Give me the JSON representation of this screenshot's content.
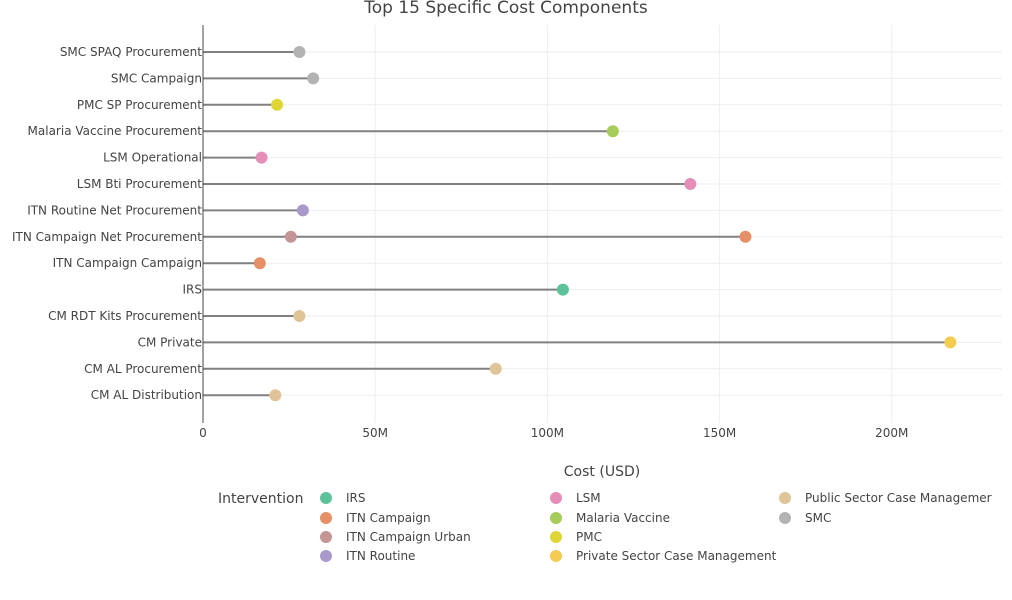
{
  "chart_data": {
    "type": "lollipop",
    "title": "Top 15 Specific Cost Components",
    "xlabel": "Cost (USD)",
    "ylabel": "",
    "xlim": [
      0,
      232000000
    ],
    "xticks": [
      {
        "value": 0,
        "label": "0"
      },
      {
        "value": 50000000,
        "label": "50M"
      },
      {
        "value": 100000000,
        "label": "100M"
      },
      {
        "value": 150000000,
        "label": "150M"
      },
      {
        "value": 200000000,
        "label": "200M"
      }
    ],
    "grid": true,
    "legend_position": "bottom",
    "legend_title": "Intervention",
    "categories": [
      "SMC SPAQ  Procurement",
      "SMC Campaign",
      "PMC SP Procurement",
      "Malaria Vaccine Procurement",
      "LSM Operational",
      "LSM Bti Procurement",
      "ITN Routine Net Procurement",
      "ITN Campaign Net Procurement",
      "ITN Campaign Campaign",
      "IRS",
      "CM RDT Kits Procurement",
      "CM Private",
      "CM AL Procurement",
      "CM AL Distribution"
    ],
    "series": [
      {
        "name": "IRS",
        "color": "#5cc29a",
        "points": [
          {
            "category": "IRS",
            "value": 104500000
          }
        ]
      },
      {
        "name": "ITN Routine",
        "color": "#a999cb",
        "points": [
          {
            "category": "ITN Routine Net Procurement",
            "value": 29000000
          }
        ]
      },
      {
        "name": "PMC",
        "color": "#e0d536",
        "points": [
          {
            "category": "PMC SP Procurement",
            "value": 21500000
          }
        ]
      },
      {
        "name": "SMC",
        "color": "#b3b3b3",
        "points": [
          {
            "category": "SMC SPAQ  Procurement",
            "value": 28000000
          },
          {
            "category": "SMC Campaign",
            "value": 32000000
          }
        ]
      },
      {
        "name": "ITN Campaign",
        "color": "#e59066",
        "points": [
          {
            "category": "ITN Campaign Net Procurement",
            "value": 157500000
          },
          {
            "category": "ITN Campaign Campaign",
            "value": 16500000
          }
        ]
      },
      {
        "name": "LSM",
        "color": "#e58fb8",
        "points": [
          {
            "category": "LSM Bti Procurement",
            "value": 141500000
          },
          {
            "category": "LSM Operational",
            "value": 17000000
          }
        ]
      },
      {
        "name": "Private Sector Case Management",
        "color": "#f5cc52",
        "points": [
          {
            "category": "CM Private",
            "value": 217000000
          }
        ]
      },
      {
        "name": "ITN Campaign Urban",
        "color": "#c49595",
        "points": [
          {
            "category": "ITN Campaign Net Procurement",
            "value": 25500000
          }
        ]
      },
      {
        "name": "Malaria Vaccine",
        "color": "#a6cc5a",
        "points": [
          {
            "category": "Malaria Vaccine Procurement",
            "value": 119000000
          }
        ]
      },
      {
        "name": "Public Sector Case Management",
        "color": "#dfc498",
        "points": [
          {
            "category": "CM RDT Kits Procurement",
            "value": 28000000
          },
          {
            "category": "CM AL Procurement",
            "value": 85000000
          },
          {
            "category": "CM AL Distribution",
            "value": 21000000
          }
        ]
      }
    ],
    "legend_order": [
      "IRS",
      "ITN Campaign",
      "ITN Campaign Urban",
      "ITN Routine",
      "LSM",
      "Malaria Vaccine",
      "PMC",
      "Private Sector Case Management",
      "Public Sector Case Management",
      "SMC"
    ],
    "legend_labels": {
      "IRS": "IRS",
      "ITN Campaign": "ITN Campaign",
      "ITN Campaign Urban": "ITN Campaign Urban",
      "ITN Routine": "ITN Routine",
      "LSM": "LSM",
      "Malaria Vaccine": "Malaria Vaccine",
      "PMC": "PMC",
      "Private Sector Case Management": "Private Sector Case Management",
      "Public Sector Case Management": "Public Sector Case Managemer",
      "SMC": "SMC"
    },
    "stem_color": "#808080",
    "grid_color": "#eeeeee",
    "axis_color": "#444444"
  }
}
